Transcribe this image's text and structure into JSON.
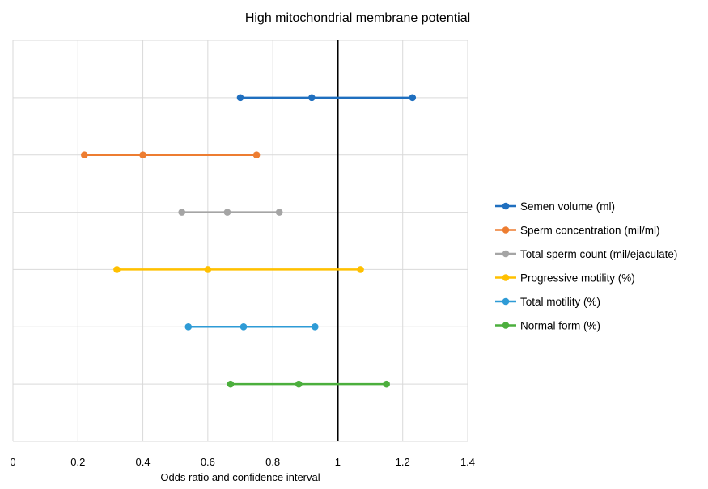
{
  "chart_data": {
    "type": "forest",
    "title": "High mitochondrial membrane potential",
    "xlabel": "Odds ratio and confidence interval",
    "ylabel": "",
    "xlim": [
      0,
      1.4
    ],
    "x_ticks": [
      "0",
      "0.2",
      "0.4",
      "0.6",
      "0.8",
      "1",
      "1.2",
      "1.4"
    ],
    "reference_line_x": 1,
    "grid": true,
    "legend_position": "right",
    "series": [
      {
        "name": "Semen volume (ml)",
        "color": "#1f6fbf",
        "lower": 0.7,
        "estimate": 0.92,
        "upper": 1.23
      },
      {
        "name": "Sperm concentration (mil/ml)",
        "color": "#ed7d31",
        "lower": 0.22,
        "estimate": 0.4,
        "upper": 0.75
      },
      {
        "name": "Total sperm count (mil/ejaculate)",
        "color": "#a5a5a5",
        "lower": 0.52,
        "estimate": 0.66,
        "upper": 0.82
      },
      {
        "name": "Progressive motility  (%)",
        "color": "#ffc000",
        "lower": 0.32,
        "estimate": 0.6,
        "upper": 1.07
      },
      {
        "name": "Total motility (%)",
        "color": "#2e9bd6",
        "lower": 0.54,
        "estimate": 0.71,
        "upper": 0.93
      },
      {
        "name": "Normal form (%)",
        "color": "#4caf3d",
        "lower": 0.67,
        "estimate": 0.88,
        "upper": 1.15
      }
    ]
  }
}
